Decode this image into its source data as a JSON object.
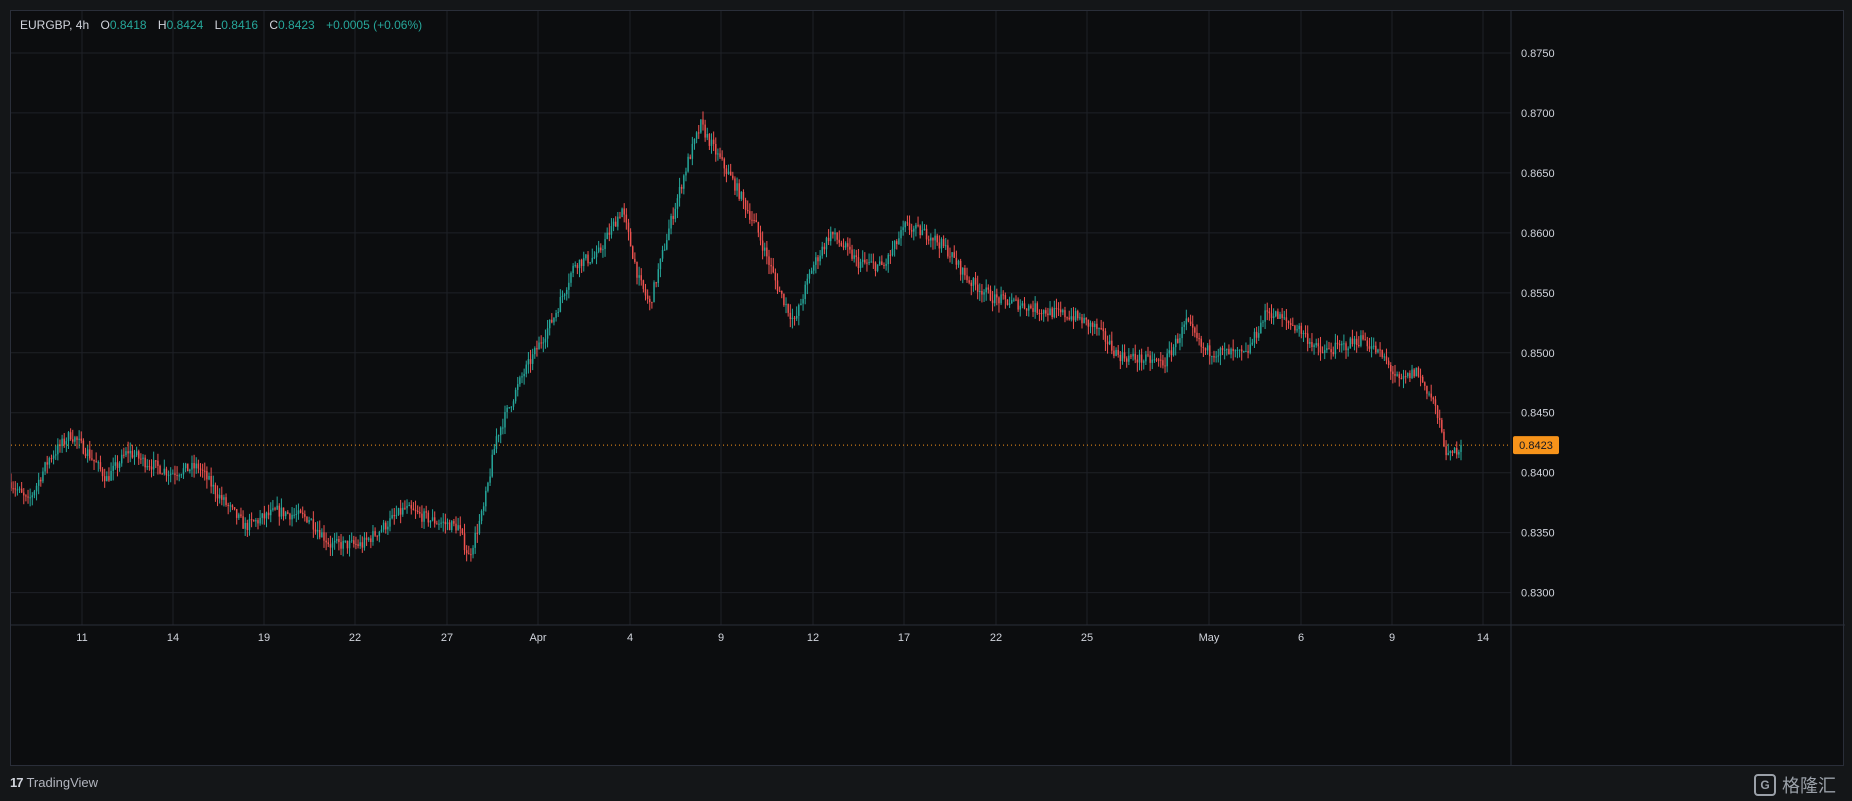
{
  "legend": {
    "symbol": "EURGBP, 4h",
    "o_label": "O",
    "o_value": "0.8418",
    "h_label": "H",
    "h_value": "0.8424",
    "l_label": "L",
    "l_value": "0.8416",
    "c_label": "C",
    "c_value": "0.8423",
    "change": "+0.0005 (+0.06%)"
  },
  "colors": {
    "up": "#26a69a",
    "down": "#ef5350",
    "last_price": "#f7931a",
    "grid": "#1e2127",
    "axis_text": "#d1d4dc"
  },
  "footer": {
    "brand": "TradingView",
    "brand_mark": "17",
    "watermark_text": "格隆汇",
    "watermark_mark": "G"
  },
  "chart_data": {
    "type": "candlestick",
    "symbol": "EURGBP",
    "timeframe": "4h",
    "ylim": [
      0.8273,
      0.8785
    ],
    "y_ticks": [
      "0.8300",
      "0.8350",
      "0.8400",
      "0.8450",
      "0.8500",
      "0.8550",
      "0.8600",
      "0.8650",
      "0.8700",
      "0.8750"
    ],
    "x_ticks": [
      "11",
      "14",
      "19",
      "22",
      "27",
      "Apr",
      "4",
      "9",
      "12",
      "17",
      "22",
      "25",
      "May",
      "6",
      "9",
      "14"
    ],
    "grid": true,
    "last_price": 0.8423,
    "last_price_label": "0.8423",
    "anchors": [
      [
        0,
        0.8392
      ],
      [
        8,
        0.8375
      ],
      [
        18,
        0.8412
      ],
      [
        28,
        0.8432
      ],
      [
        36,
        0.8417
      ],
      [
        45,
        0.8395
      ],
      [
        55,
        0.8418
      ],
      [
        62,
        0.841
      ],
      [
        75,
        0.84
      ],
      [
        88,
        0.8405
      ],
      [
        98,
        0.838
      ],
      [
        110,
        0.8355
      ],
      [
        125,
        0.8368
      ],
      [
        140,
        0.8362
      ],
      [
        150,
        0.834
      ],
      [
        165,
        0.834
      ],
      [
        175,
        0.8355
      ],
      [
        185,
        0.837
      ],
      [
        198,
        0.836
      ],
      [
        210,
        0.8355
      ],
      [
        215,
        0.833
      ],
      [
        222,
        0.837
      ],
      [
        228,
        0.843
      ],
      [
        240,
        0.848
      ],
      [
        255,
        0.853
      ],
      [
        265,
        0.8575
      ],
      [
        275,
        0.858
      ],
      [
        287,
        0.862
      ],
      [
        295,
        0.856
      ],
      [
        300,
        0.854
      ],
      [
        310,
        0.861
      ],
      [
        318,
        0.866
      ],
      [
        324,
        0.869
      ],
      [
        330,
        0.867
      ],
      [
        340,
        0.864
      ],
      [
        350,
        0.8605
      ],
      [
        360,
        0.8555
      ],
      [
        368,
        0.8525
      ],
      [
        376,
        0.857
      ],
      [
        385,
        0.86
      ],
      [
        398,
        0.8575
      ],
      [
        410,
        0.8572
      ],
      [
        420,
        0.8605
      ],
      [
        432,
        0.8598
      ],
      [
        440,
        0.8585
      ],
      [
        450,
        0.856
      ],
      [
        462,
        0.8545
      ],
      [
        475,
        0.854
      ],
      [
        485,
        0.8535
      ],
      [
        500,
        0.853
      ],
      [
        510,
        0.852
      ],
      [
        520,
        0.8498
      ],
      [
        532,
        0.8494
      ],
      [
        542,
        0.8492
      ],
      [
        552,
        0.8525
      ],
      [
        560,
        0.8502
      ],
      [
        570,
        0.85
      ],
      [
        580,
        0.8498
      ],
      [
        590,
        0.8535
      ],
      [
        605,
        0.852
      ],
      [
        615,
        0.85
      ],
      [
        625,
        0.8505
      ],
      [
        635,
        0.8512
      ],
      [
        645,
        0.8495
      ],
      [
        652,
        0.8475
      ],
      [
        660,
        0.8485
      ],
      [
        668,
        0.846
      ],
      [
        675,
        0.8412
      ],
      [
        681,
        0.8423
      ]
    ],
    "noise_seed": 7,
    "noise_amp": 0.001,
    "candle_count": 682
  }
}
